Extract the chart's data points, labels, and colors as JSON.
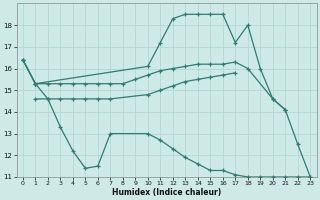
{
  "xlabel": "Humidex (Indice chaleur)",
  "x_ticks": [
    0,
    1,
    2,
    3,
    4,
    5,
    6,
    7,
    8,
    9,
    10,
    11,
    12,
    13,
    14,
    15,
    16,
    17,
    18,
    19,
    20,
    21,
    22,
    23
  ],
  "xlim": [
    -0.5,
    23.5
  ],
  "ylim": [
    11,
    19
  ],
  "y_ticks": [
    11,
    12,
    13,
    14,
    15,
    16,
    17,
    18
  ],
  "background_color": "#ceeae7",
  "line_color": "#2e7d72",
  "grid_color": "#afd4d0",
  "lines": [
    {
      "x": [
        0,
        1,
        10,
        11,
        12,
        13,
        14,
        15,
        16,
        17,
        18,
        19,
        20,
        21,
        22,
        23
      ],
      "y": [
        16.4,
        15.3,
        16.1,
        17.2,
        18.3,
        18.5,
        18.5,
        18.5,
        18.5,
        17.2,
        18.0,
        16.0,
        14.6,
        14.1,
        12.5,
        11.0
      ]
    },
    {
      "x": [
        0,
        1,
        2,
        3,
        4,
        5,
        6,
        7,
        8,
        9,
        10,
        11,
        12,
        13,
        14,
        15,
        16,
        17,
        18,
        20,
        21
      ],
      "y": [
        16.4,
        15.3,
        15.3,
        15.3,
        15.3,
        15.3,
        15.3,
        15.3,
        15.3,
        15.5,
        15.7,
        15.9,
        16.0,
        16.1,
        16.2,
        16.2,
        16.2,
        16.3,
        16.0,
        14.6,
        14.1
      ]
    },
    {
      "x": [
        1,
        2,
        3,
        4,
        5,
        6,
        7,
        10,
        11,
        12,
        13,
        14,
        15,
        16,
        17
      ],
      "y": [
        14.6,
        14.6,
        14.6,
        14.6,
        14.6,
        14.6,
        14.6,
        14.8,
        15.0,
        15.2,
        15.4,
        15.5,
        15.6,
        15.7,
        15.8
      ]
    },
    {
      "x": [
        0,
        1,
        2,
        3,
        4,
        5,
        6,
        7,
        10,
        11,
        12,
        13,
        14,
        15,
        16,
        17,
        18,
        19,
        20,
        21,
        22,
        23
      ],
      "y": [
        16.4,
        15.3,
        14.6,
        13.3,
        12.2,
        11.4,
        11.5,
        13.0,
        13.0,
        12.7,
        12.3,
        11.9,
        11.6,
        11.3,
        11.3,
        11.1,
        11.0,
        11.0,
        11.0,
        11.0,
        11.0,
        11.0
      ]
    }
  ]
}
